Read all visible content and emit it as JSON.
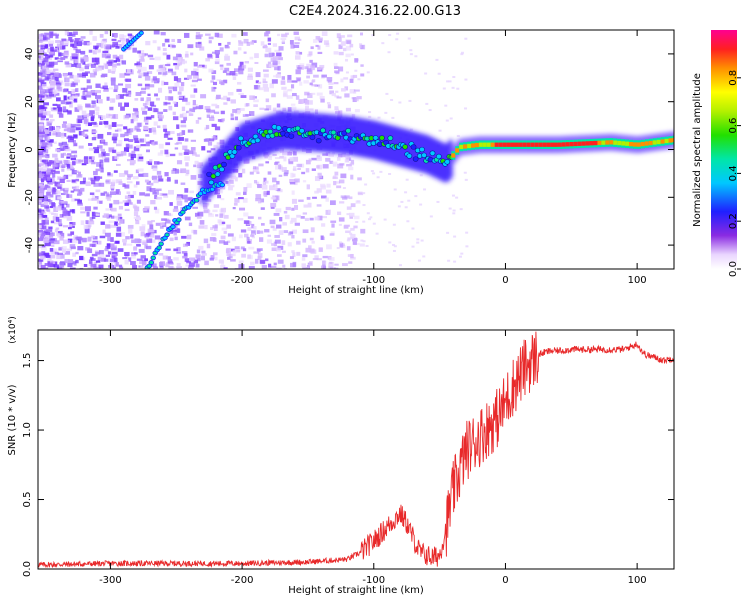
{
  "title": "C2E4.2024.316.22.00.G13",
  "colors": {
    "snr_line": "#e8292a",
    "axis": "#000000",
    "background": "#ffffff"
  },
  "chart_data": [
    {
      "type": "heatmap",
      "title": "C2E4.2024.316.22.00.G13",
      "xlabel": "Height of straight line (km)",
      "ylabel": "Frequency (Hz)",
      "xlim": [
        -355,
        128
      ],
      "ylim": [
        -50,
        50
      ],
      "xticks": [
        -300,
        -200,
        -100,
        0,
        100
      ],
      "xtick_labels": [
        "-300",
        "-200",
        "-100",
        "0",
        "100"
      ],
      "yticks": [
        -40,
        -20,
        0,
        20,
        40
      ],
      "ytick_labels": [
        "-40",
        "-20",
        "0",
        "20",
        "40"
      ],
      "colorbar": {
        "label": "Normalized spectral amplitude",
        "range": [
          0,
          1
        ],
        "ticks": [
          0.0,
          0.2,
          0.4,
          0.6,
          0.8
        ],
        "tick_labels": [
          "0.0",
          "0.2",
          "0.4",
          "0.6",
          "0.8"
        ]
      },
      "features": [
        {
          "name": "main-doppler-trace",
          "x": [
            -230,
            -200,
            -170,
            -140,
            -120,
            -100,
            -80,
            -60,
            -45,
            -35,
            -20,
            0,
            40,
            80,
            100,
            128
          ],
          "y": [
            -15,
            3,
            8,
            7,
            6,
            4,
            1,
            -2,
            -6,
            1,
            2,
            2,
            2,
            3,
            2,
            4
          ]
        },
        {
          "name": "rising-branch",
          "x": [
            -272,
            -260,
            -245,
            -230,
            -215
          ],
          "y": [
            -50,
            -38,
            -26,
            -18,
            -14
          ]
        }
      ]
    },
    {
      "type": "line",
      "xlabel": "Height of straight line (km)",
      "ylabel": "SNR (10 * v/v)",
      "yscale_label": "(x10⁴)",
      "xlim": [
        -355,
        128
      ],
      "ylim": [
        0,
        1.72
      ],
      "xticks": [
        -300,
        -200,
        -100,
        0,
        100
      ],
      "xtick_labels": [
        "-300",
        "-200",
        "-100",
        "0",
        "100"
      ],
      "yticks": [
        0.0,
        0.5,
        1.0,
        1.5
      ],
      "ytick_labels": [
        "0.0",
        "0.5",
        "1.0",
        "1.5"
      ],
      "series": [
        {
          "x": [
            -355,
            -300,
            -250,
            -200,
            -150,
            -120,
            -110,
            -100,
            -90,
            -80,
            -75,
            -70,
            -65,
            -60,
            -55,
            -50,
            -45,
            -40,
            -35,
            -30,
            -25,
            -20,
            -15,
            -10,
            -5,
            0,
            5,
            10,
            15,
            20,
            25,
            30,
            35,
            40,
            50,
            60,
            70,
            80,
            90,
            95,
            100,
            105,
            110,
            115,
            120,
            128
          ],
          "y": [
            0.03,
            0.04,
            0.04,
            0.04,
            0.05,
            0.07,
            0.12,
            0.2,
            0.3,
            0.4,
            0.33,
            0.22,
            0.12,
            0.1,
            0.08,
            0.1,
            0.3,
            0.55,
            0.7,
            0.85,
            0.9,
            0.95,
            1.0,
            1.05,
            1.1,
            1.2,
            1.3,
            1.38,
            1.45,
            1.5,
            1.54,
            1.56,
            1.57,
            1.57,
            1.58,
            1.58,
            1.58,
            1.58,
            1.58,
            1.6,
            1.62,
            1.55,
            1.53,
            1.52,
            1.5,
            1.52
          ]
        }
      ]
    }
  ]
}
